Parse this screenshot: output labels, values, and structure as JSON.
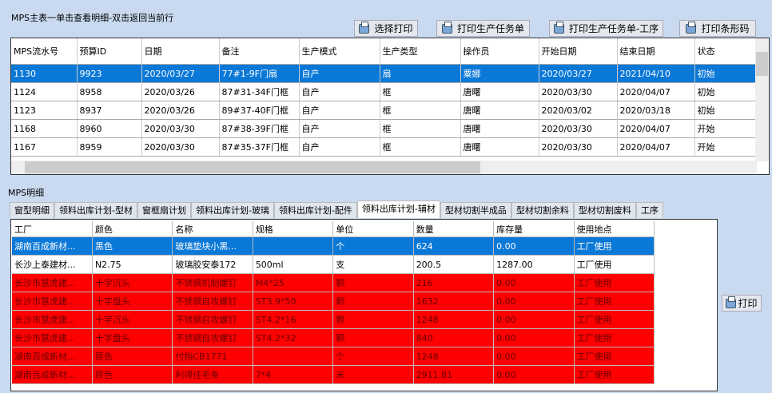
{
  "master": {
    "title": "MPS主表一单击查看明细-双击返回当前行",
    "buttons": [
      "选择打印",
      "打印生产任务单",
      "打印生产任务单-工序",
      "打印条形码"
    ],
    "columns": [
      "MPS流水号",
      "预算ID",
      "日期",
      "备注",
      "生产模式",
      "生产类型",
      "操作员",
      "开始日期",
      "结束日期",
      "状态"
    ],
    "rows": [
      [
        "1130",
        "9923",
        "2020/03/27",
        "77#1-9F门扇",
        "自产",
        "扇",
        "粟娜",
        "2020/03/27",
        "2021/04/10",
        "初始"
      ],
      [
        "1124",
        "8958",
        "2020/03/26",
        "87#31-34F门框",
        "自产",
        "框",
        "唐曙",
        "2020/03/30",
        "2020/04/07",
        "初始"
      ],
      [
        "1123",
        "8937",
        "2020/03/26",
        "89#37-40F门框",
        "自产",
        "框",
        "唐曙",
        "2020/03/02",
        "2020/03/18",
        "初始"
      ],
      [
        "1168",
        "8960",
        "2020/03/30",
        "87#38-39F门框",
        "自产",
        "框",
        "唐曙",
        "2020/03/30",
        "2020/04/07",
        "开始"
      ],
      [
        "1167",
        "8959",
        "2020/03/30",
        "87#35-37F门框",
        "自产",
        "框",
        "唐曙",
        "2020/03/30",
        "2020/04/07",
        "开始"
      ]
    ],
    "selected_row": 0
  },
  "detail": {
    "title": "MPS明细",
    "tabs": [
      "窗型明细",
      "领料出库计划-型材",
      "窗框扇计划",
      "领料出库计划-玻璃",
      "领料出库计划-配件",
      "领料出库计划-辅材",
      "型材切割半成品",
      "型材切割余料",
      "型材切割废料",
      "工序"
    ],
    "active_tab": 5,
    "columns": [
      "工厂",
      "颜色",
      "名称",
      "规格",
      "单位",
      "数量",
      "库存量",
      "使用地点"
    ],
    "rows": [
      [
        "湖南百成新材...",
        "黑色",
        "玻璃垫块小黑...",
        "",
        "个",
        "624",
        "0.00",
        "工厂使用"
      ],
      [
        "长沙上泰建材...",
        "N2.75",
        "玻璃胶安泰172",
        "500ml",
        "支",
        "200.5",
        "1287.00",
        "工厂使用"
      ],
      [
        "长沙市慧虎建...",
        "十字沉头",
        "不锈钢机制螺钉",
        "M4*25",
        "颗",
        "216",
        "0.00",
        "工厂使用"
      ],
      [
        "长沙市慧虎建...",
        "十字盘头",
        "不锈钢自攻螺钉",
        "ST3.9*50",
        "颗",
        "1632",
        "0.00",
        "工厂使用"
      ],
      [
        "长沙市慧虎建...",
        "十字沉头",
        "不锈钢自攻螺钉",
        "ST4.2*16",
        "颗",
        "1248",
        "0.00",
        "工厂使用"
      ],
      [
        "长沙市慧虎建...",
        "十字盘头",
        "不锈钢自攻螺钉",
        "ST4.2*32",
        "颗",
        "840",
        "0.00",
        "工厂使用"
      ],
      [
        "湖南百成新材...",
        "原色",
        "付档CB1771",
        "",
        "个",
        "1248",
        "0.00",
        "工厂使用"
      ],
      [
        "湖南百成新材...",
        "原色",
        "利得佳毛条",
        "7*4",
        "米",
        "2911.81",
        "0.00",
        "工厂使用"
      ]
    ],
    "row_styles": [
      "selected",
      "normal",
      "red",
      "red",
      "red",
      "red",
      "red",
      "red"
    ],
    "print_button": "打印"
  },
  "colors": {
    "selection": "#0a78d7",
    "shortage": "#ff0000",
    "background": "#c9daf0"
  }
}
